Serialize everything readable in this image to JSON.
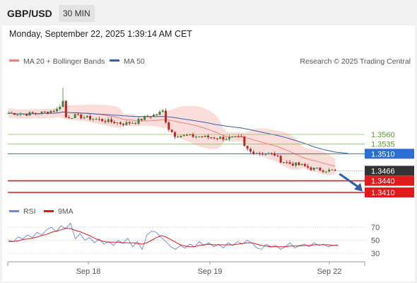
{
  "header": {
    "symbol": "GBP/USD",
    "timeframe": "30 MIN",
    "timestamp": "Monday, September 22, 2025 1:39:14 AM CET"
  },
  "legend": {
    "ma20": "MA 20 + Bollinger Bands",
    "ma50": "MA 50",
    "credit": "Research © 2025 Trading Central"
  },
  "rsi_legend": {
    "rsi": "RSI",
    "ma9": "9MA"
  },
  "colors": {
    "up": "#2e8b3a",
    "down": "#c0241c",
    "ma20": "#f08080",
    "ma50": "#3a5fa8",
    "bollinger": "#f9d0cc",
    "resistance": "#8cc063",
    "pivot": "#2b6fd6",
    "support": "#e01b1b",
    "last_price": "#333333",
    "arrow": "#2f5fa8",
    "rsi_line": "#6a88e0",
    "rsi_ma": "#e01b1b"
  },
  "chart_data": [
    {
      "type": "candlestick",
      "title": "GBP/USD 30 MIN",
      "x_tick_labels": [
        "Sep 18",
        "Sep 19",
        "Sep 22"
      ],
      "ylim": [
        1.338,
        1.366
      ],
      "levels": [
        {
          "value": "1.3560",
          "kind": "resistance"
        },
        {
          "value": "1.3535",
          "kind": "resistance"
        },
        {
          "value": "1.3510",
          "kind": "pivot"
        },
        {
          "value": "1.3466",
          "kind": "last"
        },
        {
          "value": "1.3440",
          "kind": "support"
        },
        {
          "value": "1.3410",
          "kind": "support"
        }
      ],
      "last_price": 1.3466,
      "forecast": "down toward 1.3410",
      "series": [
        {
          "name": "MA 20 + Bollinger Bands",
          "values_note": "moving average with bands, declining"
        },
        {
          "name": "MA 50",
          "values_note": "slower moving average, declining"
        }
      ],
      "price_path": [
        [
          0,
          1.3615
        ],
        [
          6,
          1.3613
        ],
        [
          12,
          1.3617
        ],
        [
          16,
          1.3624
        ],
        [
          18,
          1.3646
        ],
        [
          19,
          1.3604
        ],
        [
          22,
          1.3608
        ],
        [
          30,
          1.3598
        ],
        [
          38,
          1.3588
        ],
        [
          42,
          1.3592
        ],
        [
          45,
          1.3604
        ],
        [
          49,
          1.3612
        ],
        [
          51,
          1.362
        ],
        [
          52,
          1.3595
        ],
        [
          53,
          1.3575
        ],
        [
          55,
          1.3558
        ],
        [
          60,
          1.3556
        ],
        [
          66,
          1.3553
        ],
        [
          72,
          1.355
        ],
        [
          77,
          1.3551
        ],
        [
          78,
          1.3528
        ],
        [
          80,
          1.3515
        ],
        [
          84,
          1.3511
        ],
        [
          88,
          1.3508
        ],
        [
          90,
          1.3492
        ],
        [
          93,
          1.3485
        ],
        [
          97,
          1.348
        ],
        [
          100,
          1.3472
        ],
        [
          104,
          1.3468
        ],
        [
          108,
          1.3466
        ]
      ]
    },
    {
      "type": "line",
      "title": "RSI",
      "y_tick_labels": [
        "70",
        "50",
        "30"
      ],
      "ylim": [
        20,
        80
      ],
      "series": [
        {
          "name": "RSI",
          "values": [
            50,
            48,
            55,
            52,
            58,
            54,
            62,
            58,
            66,
            70,
            63,
            72,
            68,
            76,
            52,
            60,
            50,
            54,
            46,
            52,
            44,
            48,
            42,
            50,
            45,
            53,
            40,
            48,
            36,
            58,
            64,
            62,
            54,
            48,
            40,
            36,
            42,
            38,
            44,
            40,
            48,
            42,
            46,
            40,
            44,
            38,
            46,
            42,
            48,
            44,
            50,
            46,
            38,
            36,
            44,
            40,
            42,
            36,
            40,
            46,
            38,
            42,
            44,
            40,
            46,
            42,
            44,
            40,
            42,
            43
          ]
        },
        {
          "name": "9MA",
          "values": [
            48,
            48,
            49,
            51,
            52,
            53,
            55,
            57,
            59,
            62,
            64,
            66,
            68,
            68,
            65,
            63,
            60,
            57,
            53,
            50,
            48,
            47,
            47,
            47,
            46,
            46,
            46,
            45,
            44,
            46,
            50,
            54,
            57,
            55,
            51,
            47,
            43,
            41,
            40,
            40,
            42,
            43,
            44,
            43,
            43,
            43,
            43,
            43,
            44,
            45,
            46,
            46,
            44,
            42,
            41,
            40,
            40,
            40,
            40,
            41,
            41,
            41,
            42,
            42,
            43,
            43,
            43,
            43,
            42,
            42
          ]
        }
      ]
    }
  ]
}
